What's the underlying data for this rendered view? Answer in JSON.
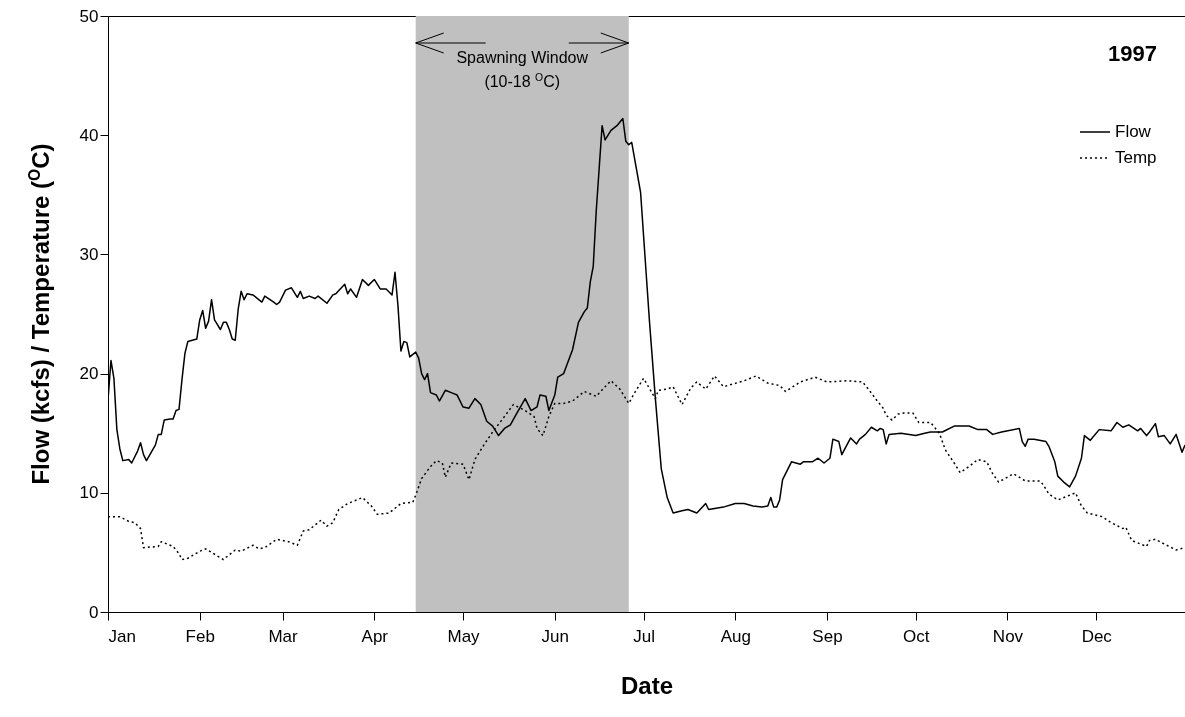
{
  "chart_data": {
    "type": "line",
    "xlabel": "Date",
    "ylabel": "Flow (kcfs) / Temperature ($^{O}$C)",
    "legend_title": "1997",
    "legend": "top right",
    "marker": "none",
    "grid": false,
    "xlim": [
      "1997-01-01",
      "1997-12-31"
    ],
    "xticks": [
      {
        "value": "1997-01-01",
        "label": "Jan"
      },
      {
        "value": "1997-02-01",
        "label": "Feb"
      },
      {
        "value": "1997-03-01",
        "label": "Mar"
      },
      {
        "value": "1997-04-01",
        "label": "Apr"
      },
      {
        "value": "1997-05-01",
        "label": "May"
      },
      {
        "value": "1997-06-01",
        "label": "Jun"
      },
      {
        "value": "1997-07-01",
        "label": "Jul"
      },
      {
        "value": "1997-08-01",
        "label": "Aug"
      },
      {
        "value": "1997-09-01",
        "label": "Sep"
      },
      {
        "value": "1997-10-01",
        "label": "Oct"
      },
      {
        "value": "1997-11-01",
        "label": "Nov"
      },
      {
        "value": "1997-12-01",
        "label": "Dec"
      }
    ],
    "ylim": [
      0,
      50
    ],
    "yticks": [
      0,
      10,
      20,
      30,
      40,
      50
    ],
    "bands": [
      {
        "axis": "x",
        "from": "1997-04-15",
        "to": "1997-06-26",
        "label": "Spawning Window\n(10-18 $^{O}$C)",
        "color": "#c0c0c0"
      }
    ],
    "series": [
      {
        "name": "Flow",
        "color": "#000000",
        "line_style": "solid",
        "x": [
          "1997-01-01",
          "1997-01-02",
          "1997-01-03",
          "1997-01-04",
          "1997-01-05",
          "1997-01-06",
          "1997-01-08",
          "1997-01-09",
          "1997-01-11",
          "1997-01-12",
          "1997-01-13",
          "1997-01-14",
          "1997-01-17",
          "1997-01-18",
          "1997-01-19",
          "1997-01-20",
          "1997-01-22",
          "1997-01-23",
          "1997-01-24",
          "1997-01-25",
          "1997-01-26",
          "1997-01-27",
          "1997-01-28",
          "1997-01-31",
          "1997-02-01",
          "1997-02-02",
          "1997-02-03",
          "1997-02-04",
          "1997-02-05",
          "1997-02-06",
          "1997-02-08",
          "1997-02-09",
          "1997-02-10",
          "1997-02-11",
          "1997-02-12",
          "1997-02-13",
          "1997-02-14",
          "1997-02-15",
          "1997-02-16",
          "1997-02-17",
          "1997-02-19",
          "1997-02-22",
          "1997-02-23",
          "1997-02-26",
          "1997-02-27",
          "1997-02-28",
          "1997-03-02",
          "1997-03-04",
          "1997-03-06",
          "1997-03-07",
          "1997-03-08",
          "1997-03-10",
          "1997-03-12",
          "1997-03-13",
          "1997-03-16",
          "1997-03-18",
          "1997-03-19",
          "1997-03-22",
          "1997-03-23",
          "1997-03-24",
          "1997-03-26",
          "1997-03-28",
          "1997-03-30",
          "1997-04-01",
          "1997-04-03",
          "1997-04-05",
          "1997-04-07",
          "1997-04-08",
          "1997-04-09",
          "1997-04-10",
          "1997-04-11",
          "1997-04-12",
          "1997-04-13",
          "1997-04-15",
          "1997-04-16",
          "1997-04-17",
          "1997-04-18",
          "1997-04-19",
          "1997-04-20",
          "1997-04-22",
          "1997-04-23",
          "1997-04-25",
          "1997-04-27",
          "1997-04-29",
          "1997-05-01",
          "1997-05-03",
          "1997-05-05",
          "1997-05-07",
          "1997-05-09",
          "1997-05-11",
          "1997-05-13",
          "1997-05-15",
          "1997-05-17",
          "1997-05-19",
          "1997-05-22",
          "1997-05-24",
          "1997-05-26",
          "1997-05-27",
          "1997-05-29",
          "1997-05-30",
          "1997-06-01",
          "1997-06-02",
          "1997-06-04",
          "1997-06-07",
          "1997-06-09",
          "1997-06-11",
          "1997-06-12",
          "1997-06-13",
          "1997-06-14",
          "1997-06-15",
          "1997-06-16",
          "1997-06-17",
          "1997-06-18",
          "1997-06-20",
          "1997-06-22",
          "1997-06-24",
          "1997-06-25",
          "1997-06-26",
          "1997-06-27",
          "1997-06-30",
          "1997-07-02",
          "1997-07-03",
          "1997-07-05",
          "1997-07-07",
          "1997-07-09",
          "1997-07-11",
          "1997-07-14",
          "1997-07-16",
          "1997-07-19",
          "1997-07-22",
          "1997-07-23",
          "1997-07-28",
          "1997-08-01",
          "1997-08-04",
          "1997-08-07",
          "1997-08-10",
          "1997-08-12",
          "1997-08-13",
          "1997-08-14",
          "1997-08-15",
          "1997-08-16",
          "1997-08-17",
          "1997-08-20",
          "1997-08-23",
          "1997-08-24",
          "1997-08-27",
          "1997-08-29",
          "1997-08-31",
          "1997-09-02",
          "1997-09-03",
          "1997-09-05",
          "1997-09-06",
          "1997-09-09",
          "1997-09-11",
          "1997-09-12",
          "1997-09-14",
          "1997-09-16",
          "1997-09-18",
          "1997-09-19",
          "1997-09-20",
          "1997-09-21",
          "1997-09-22",
          "1997-09-26",
          "1997-10-01",
          "1997-10-04",
          "1997-10-06",
          "1997-10-10",
          "1997-10-14",
          "1997-10-19",
          "1997-10-22",
          "1997-10-25",
          "1997-10-27",
          "1997-10-30",
          "1997-11-05",
          "1997-11-06",
          "1997-11-07",
          "1997-11-08",
          "1997-11-10",
          "1997-11-14",
          "1997-11-15",
          "1997-11-17",
          "1997-11-18",
          "1997-11-20",
          "1997-11-22",
          "1997-11-24",
          "1997-11-26",
          "1997-11-27",
          "1997-11-29",
          "1997-12-02",
          "1997-12-06",
          "1997-12-08",
          "1997-12-10",
          "1997-12-12",
          "1997-12-15",
          "1997-12-16",
          "1997-12-18",
          "1997-12-19",
          "1997-12-21",
          "1997-12-22",
          "1997-12-24",
          "1997-12-26",
          "1997-12-28",
          "1997-12-30",
          "1997-12-31"
        ],
        "values": [
          17.8,
          21.1,
          19.6,
          15.3,
          13.7,
          12.7,
          12.8,
          12.5,
          13.5,
          14.2,
          13.2,
          12.7,
          14.0,
          14.9,
          14.9,
          16.1,
          16.2,
          16.2,
          16.9,
          17.0,
          19.5,
          21.7,
          22.7,
          22.9,
          24.5,
          25.3,
          23.8,
          24.4,
          26.2,
          24.5,
          23.7,
          24.3,
          24.3,
          23.7,
          22.9,
          22.8,
          25.4,
          26.9,
          26.2,
          26.7,
          26.6,
          26.0,
          26.5,
          26.0,
          25.8,
          26.0,
          27.0,
          27.2,
          26.4,
          26.9,
          26.3,
          26.5,
          26.3,
          26.5,
          25.9,
          26.6,
          26.7,
          27.5,
          26.7,
          27.1,
          26.4,
          27.9,
          27.4,
          27.9,
          27.1,
          27.1,
          26.6,
          28.5,
          25.7,
          21.9,
          22.7,
          22.6,
          21.4,
          21.8,
          21.3,
          20.0,
          19.5,
          20.0,
          18.4,
          18.2,
          17.7,
          18.6,
          18.4,
          18.2,
          17.2,
          17.1,
          17.9,
          17.4,
          16.0,
          15.6,
          14.8,
          15.4,
          15.7,
          16.6,
          17.9,
          16.9,
          17.2,
          18.2,
          18.1,
          16.9,
          18.2,
          19.7,
          20.0,
          22.0,
          24.3,
          25.2,
          25.5,
          27.7,
          29.0,
          33.6,
          37.2,
          40.8,
          39.6,
          40.4,
          40.8,
          41.4,
          39.5,
          39.2,
          39.4,
          35.2,
          28.0,
          24.4,
          17.9,
          12.0,
          9.6,
          8.3,
          8.5,
          8.6,
          8.3,
          9.1,
          8.6,
          8.8,
          9.1,
          9.1,
          8.9,
          8.8,
          8.9,
          9.6,
          8.8,
          8.8,
          9.4,
          11.1,
          12.6,
          12.4,
          12.6,
          12.6,
          12.9,
          12.5,
          12.9,
          14.5,
          14.3,
          13.2,
          14.6,
          14.1,
          14.5,
          14.9,
          15.5,
          15.2,
          15.4,
          15.3,
          14.1,
          14.9,
          15.0,
          14.8,
          15.0,
          15.1,
          15.1,
          15.6,
          15.6,
          15.3,
          15.3,
          14.9,
          15.1,
          15.4,
          14.3,
          13.9,
          14.5,
          14.5,
          14.3,
          13.9,
          12.6,
          11.4,
          10.9,
          10.5,
          11.4,
          12.9,
          14.8,
          14.4,
          15.3,
          15.2,
          15.9,
          15.5,
          15.7,
          15.2,
          15.4,
          14.8,
          15.1,
          15.8,
          14.7,
          14.8,
          14.1,
          14.9,
          13.4,
          14.0
        ]
      },
      {
        "name": "Temp",
        "color": "#000000",
        "line_style": "dotted",
        "x": [
          "1997-01-01",
          "1997-01-05",
          "1997-01-08",
          "1997-01-10",
          "1997-01-12",
          "1997-01-13",
          "1997-01-18",
          "1997-01-19",
          "1997-01-23",
          "1997-01-25",
          "1997-01-26",
          "1997-01-28",
          "1997-02-01",
          "1997-02-03",
          "1997-02-07",
          "1997-02-09",
          "1997-02-13",
          "1997-02-15",
          "1997-02-19",
          "1997-02-21",
          "1997-02-23",
          "1997-02-27",
          "1997-03-03",
          "1997-03-06",
          "1997-03-08",
          "1997-03-10",
          "1997-03-14",
          "1997-03-16",
          "1997-03-18",
          "1997-03-20",
          "1997-03-23",
          "1997-03-26",
          "1997-03-28",
          "1997-03-31",
          "1997-04-02",
          "1997-04-06",
          "1997-04-10",
          "1997-04-14",
          "1997-04-15",
          "1997-04-17",
          "1997-04-20",
          "1997-04-22",
          "1997-04-24",
          "1997-04-25",
          "1997-04-27",
          "1997-05-01",
          "1997-05-03",
          "1997-05-05",
          "1997-05-08",
          "1997-05-11",
          "1997-05-15",
          "1997-05-18",
          "1997-05-22",
          "1997-05-25",
          "1997-05-26",
          "1997-05-28",
          "1997-05-30",
          "1997-06-01",
          "1997-06-04",
          "1997-06-07",
          "1997-06-11",
          "1997-06-15",
          "1997-06-18",
          "1997-06-20",
          "1997-06-23",
          "1997-06-26",
          "1997-06-28",
          "1997-07-01",
          "1997-07-05",
          "1997-07-06",
          "1997-07-09",
          "1997-07-11",
          "1997-07-14",
          "1997-07-17",
          "1997-07-19",
          "1997-07-22",
          "1997-07-25",
          "1997-07-28",
          "1997-08-04",
          "1997-08-08",
          "1997-08-12",
          "1997-08-16",
          "1997-08-18",
          "1997-08-23",
          "1997-08-28",
          "1997-09-01",
          "1997-09-08",
          "1997-09-13",
          "1997-09-15",
          "1997-09-18",
          "1997-09-20",
          "1997-09-21",
          "1997-09-23",
          "1997-09-25",
          "1997-09-27",
          "1997-09-30",
          "1997-10-02",
          "1997-10-06",
          "1997-10-09",
          "1997-10-11",
          "1997-10-14",
          "1997-10-16",
          "1997-10-19",
          "1997-10-22",
          "1997-10-25",
          "1997-10-27",
          "1997-10-29",
          "1997-11-03",
          "1997-11-07",
          "1997-11-12",
          "1997-11-13",
          "1997-11-15",
          "1997-11-18",
          "1997-11-22",
          "1997-11-24",
          "1997-11-26",
          "1997-11-28",
          "1997-12-03",
          "1997-12-06",
          "1997-12-10",
          "1997-12-11",
          "1997-12-13",
          "1997-12-18",
          "1997-12-19",
          "1997-12-21",
          "1997-12-24",
          "1997-12-28",
          "1997-12-31"
        ],
        "values": [
          8.0,
          8.0,
          7.6,
          7.5,
          7.0,
          5.4,
          5.5,
          5.9,
          5.5,
          4.9,
          4.4,
          4.5,
          5.1,
          5.3,
          4.7,
          4.4,
          5.2,
          5.1,
          5.6,
          5.3,
          5.4,
          6.1,
          5.9,
          5.6,
          6.8,
          6.9,
          7.7,
          7.2,
          7.5,
          8.6,
          9.1,
          9.4,
          9.6,
          8.9,
          8.2,
          8.3,
          9.1,
          9.2,
          9.8,
          11.2,
          12.2,
          12.7,
          12.5,
          11.3,
          12.5,
          12.4,
          11.1,
          12.8,
          14.0,
          15.1,
          16.4,
          17.4,
          16.9,
          16.4,
          15.4,
          14.8,
          16.4,
          17.5,
          17.5,
          17.7,
          18.5,
          18.1,
          18.9,
          19.4,
          18.7,
          17.5,
          18.4,
          19.6,
          17.9,
          18.6,
          18.7,
          18.9,
          17.4,
          18.8,
          19.3,
          18.7,
          19.8,
          18.9,
          19.4,
          19.8,
          19.2,
          19.0,
          18.5,
          19.3,
          19.7,
          19.3,
          19.4,
          19.3,
          18.7,
          17.7,
          17.1,
          16.5,
          16.1,
          16.6,
          16.7,
          16.7,
          15.9,
          15.9,
          15.0,
          13.6,
          12.5,
          11.7,
          12.2,
          12.8,
          12.6,
          11.6,
          10.9,
          11.6,
          11.0,
          11.0,
          10.7,
          9.9,
          9.4,
          9.8,
          10.0,
          8.9,
          8.3,
          8.0,
          7.5,
          7.0,
          7.1,
          6.0,
          5.5,
          6.0,
          6.1,
          5.7,
          5.2,
          5.4
        ]
      }
    ]
  }
}
